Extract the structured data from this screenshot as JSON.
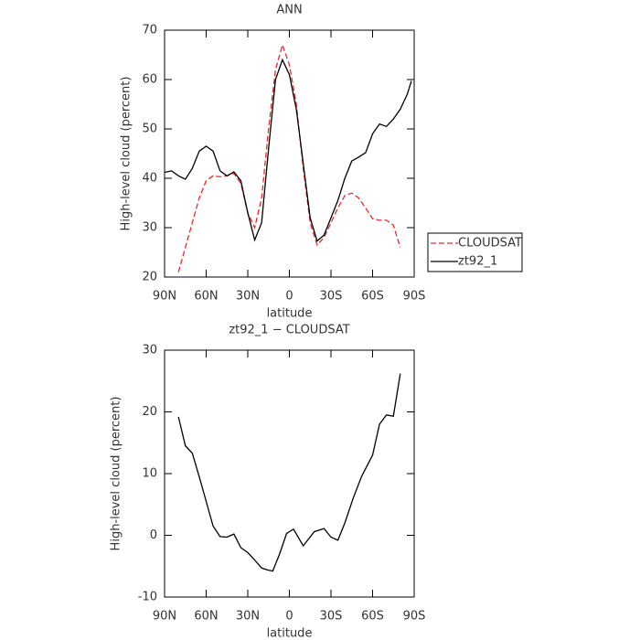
{
  "chart_data": [
    {
      "type": "line",
      "title": "ANN",
      "x_label": "latitude",
      "y_label": "High-level cloud (percent)",
      "x": [
        90,
        85,
        80,
        75,
        70,
        65,
        60,
        55,
        50,
        45,
        40,
        35,
        30,
        25,
        20,
        15,
        10,
        5,
        0,
        -5,
        -10,
        -15,
        -20,
        -25,
        -30,
        -35,
        -40,
        -45,
        -50,
        -55,
        -60,
        -65,
        -70,
        -75,
        -80,
        -85,
        -88
      ],
      "series": [
        {
          "name": "CLOUDSAT",
          "color": "#e8292a",
          "dashed": true,
          "values": [
            null,
            null,
            21,
            26,
            31,
            36,
            39.5,
            40.5,
            40.3,
            40.5,
            41,
            39,
            33,
            30,
            36,
            50,
            62,
            67,
            63,
            55,
            42,
            31,
            26.5,
            28,
            31,
            34,
            36.5,
            37,
            36,
            34,
            31.8,
            31.5,
            31.5,
            30.5,
            26,
            null,
            null
          ]
        },
        {
          "name": "zt92_1",
          "color": "#000000",
          "dashed": false,
          "values": [
            41.2,
            41.5,
            40.5,
            39.8,
            42,
            45.5,
            46.5,
            45.5,
            41.5,
            40.5,
            41.3,
            39.5,
            33,
            27.5,
            31,
            46,
            60,
            64,
            61,
            54,
            43,
            32,
            27.3,
            28.5,
            32,
            35.5,
            40,
            43.5,
            44.3,
            45.2,
            49,
            51,
            50.5,
            52,
            54,
            57,
            59.7
          ]
        }
      ],
      "xlim": [
        90,
        -90
      ],
      "xticks": [
        {
          "value": 90,
          "label": "90N"
        },
        {
          "value": 60,
          "label": "60N"
        },
        {
          "value": 30,
          "label": "30N"
        },
        0,
        {
          "value": -30,
          "label": "30S"
        },
        {
          "value": -60,
          "label": "60S"
        },
        {
          "value": -90,
          "label": "90S"
        }
      ],
      "ylim": [
        20,
        70
      ],
      "yticks": [
        20,
        30,
        40,
        50,
        60,
        70
      ],
      "legend": "right"
    },
    {
      "type": "line",
      "title": "zt92_1 − CLOUDSAT",
      "x_label": "latitude",
      "y_label": "High-level cloud (percent)",
      "x": [
        80,
        75,
        70,
        65,
        60,
        55,
        50,
        45,
        40,
        35,
        30,
        25,
        20,
        16,
        12,
        7,
        2,
        -3,
        -10,
        -18,
        -25,
        -30,
        -35,
        -40,
        -46,
        -52,
        -60,
        -65,
        -70,
        -75,
        -80
      ],
      "series": [
        {
          "color": "#000000",
          "dashed": false,
          "values": [
            19.2,
            14.5,
            13.3,
            9.5,
            5.5,
            1.5,
            -0.2,
            -0.3,
            0.2,
            -2,
            -2.8,
            -4,
            -5.3,
            -5.6,
            -5.8,
            -3,
            0.3,
            1,
            -1.7,
            0.6,
            1.1,
            -0.3,
            -0.8,
            2,
            6,
            9.5,
            13,
            18,
            19.5,
            19.3,
            26.2
          ]
        }
      ],
      "xlim": [
        90,
        -90
      ],
      "xticks": [
        {
          "value": 90,
          "label": "90N"
        },
        {
          "value": 60,
          "label": "60N"
        },
        {
          "value": 30,
          "label": "30N"
        },
        0,
        {
          "value": -30,
          "label": "30S"
        },
        {
          "value": -60,
          "label": "60S"
        },
        {
          "value": -90,
          "label": "90S"
        }
      ],
      "ylim": [
        -10,
        30
      ],
      "yticks": [
        -10,
        0,
        10,
        20,
        30
      ]
    }
  ]
}
